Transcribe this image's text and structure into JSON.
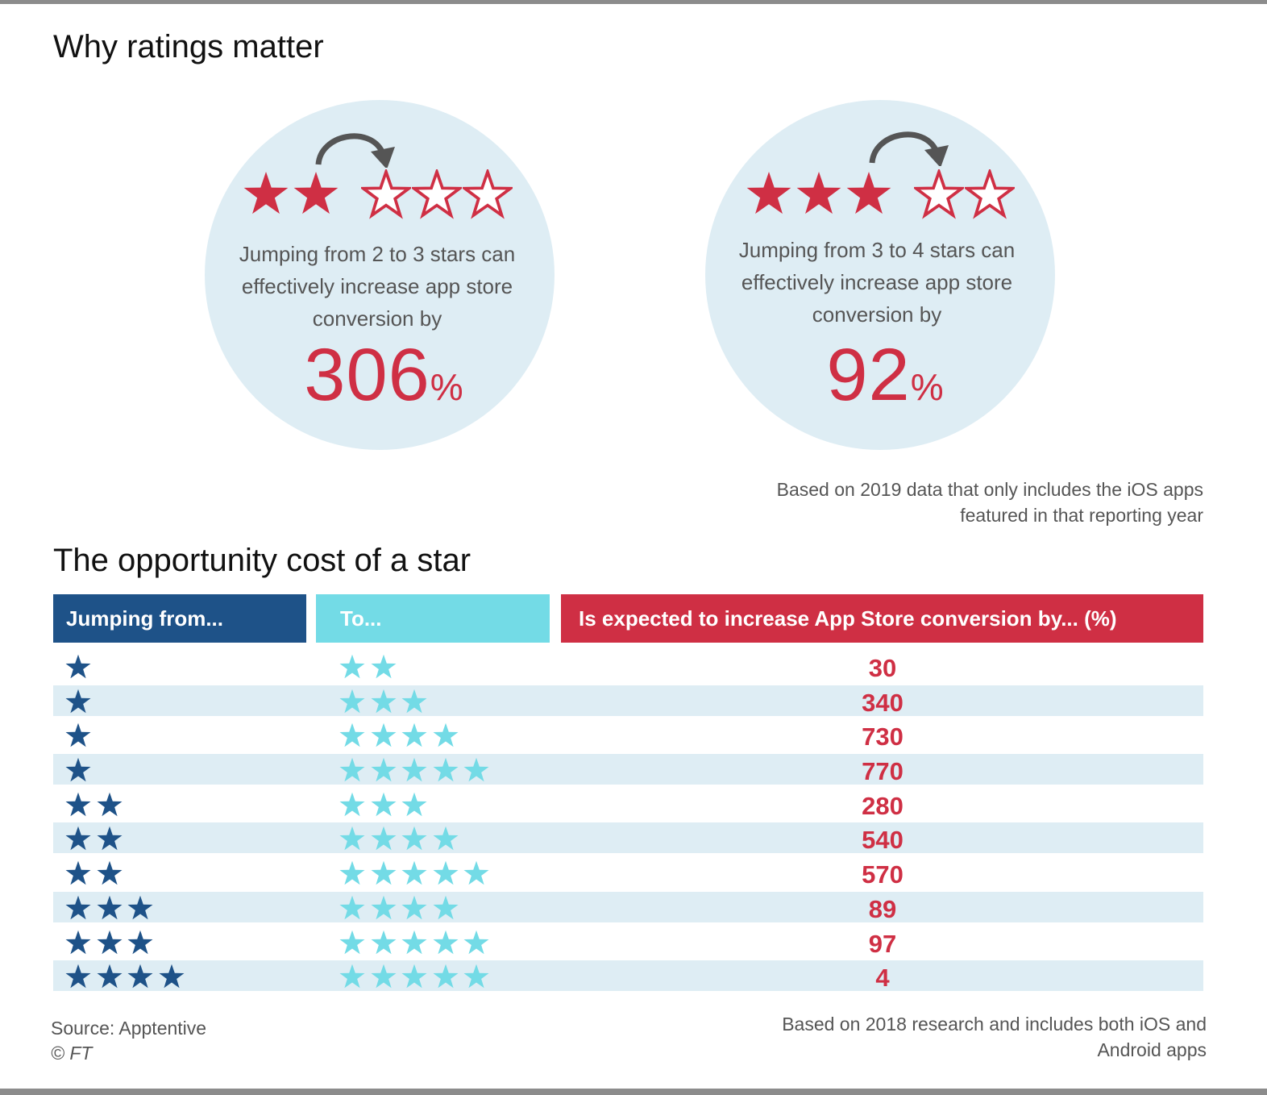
{
  "title": "Why ratings matter",
  "colors": {
    "red": "#cf2f44",
    "dark_blue": "#1e5288",
    "light_blue": "#73dbe6",
    "circle_bg": "#deedf4",
    "arrow": "#555555"
  },
  "circles": [
    {
      "filled_stars": 2,
      "empty_stars": 3,
      "text": "Jumping from 2 to 3 stars can effectively increase app store conversion by",
      "value": "306",
      "unit": "%"
    },
    {
      "filled_stars": 3,
      "empty_stars": 2,
      "text": "Jumping from 3 to 4 stars can effectively increase app store conversion by",
      "value": "92",
      "unit": "%"
    }
  ],
  "note_2019": "Based on 2019 data that only includes the iOS apps featured in that reporting year",
  "subtitle": "The opportunity cost of a star",
  "table": {
    "headers": {
      "from": "Jumping from...",
      "to": "To...",
      "increase": "Is expected to increase App Store conversion by... (%)"
    }
  },
  "chart_data": {
    "type": "table",
    "columns": [
      "Jumping from...",
      "To...",
      "Is expected to increase App Store conversion by... (%)"
    ],
    "rows": [
      {
        "from_stars": 1,
        "to_stars": 2,
        "increase": 30
      },
      {
        "from_stars": 1,
        "to_stars": 3,
        "increase": 340
      },
      {
        "from_stars": 1,
        "to_stars": 4,
        "increase": 730
      },
      {
        "from_stars": 1,
        "to_stars": 5,
        "increase": 770
      },
      {
        "from_stars": 2,
        "to_stars": 3,
        "increase": 280
      },
      {
        "from_stars": 2,
        "to_stars": 4,
        "increase": 540
      },
      {
        "from_stars": 2,
        "to_stars": 5,
        "increase": 570
      },
      {
        "from_stars": 3,
        "to_stars": 4,
        "increase": 89
      },
      {
        "from_stars": 3,
        "to_stars": 5,
        "increase": 97
      },
      {
        "from_stars": 4,
        "to_stars": 5,
        "increase": 4
      }
    ]
  },
  "footer": {
    "source": "Source: Apptentive",
    "copyright": "© FT",
    "note_2018": "Based on 2018 research and includes both iOS and Android apps"
  }
}
